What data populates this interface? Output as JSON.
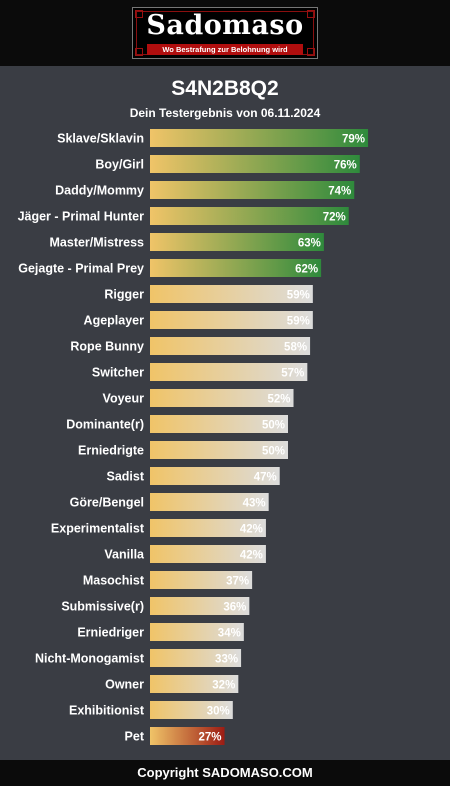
{
  "header": {
    "logo_text": "Sadomaso",
    "logo_tagline": "Wo Bestrafung zur Belohnung wird"
  },
  "test_code": "S4N2B8Q2",
  "test_date_line": "Dein Testergebnis von 06.11.2024",
  "footer_text": "Copyright SADOMASO.COM",
  "colors": {
    "background": "#3a3d44",
    "gradient_start": "#f0c468",
    "high_end": "#2e8a3c",
    "mid_end": "#dcdcdc",
    "low_end": "#9c1c14"
  },
  "chart_data": {
    "type": "bar",
    "orientation": "horizontal",
    "xlim": [
      0,
      100
    ],
    "unit": "%",
    "categories": [
      "Sklave/Sklavin",
      "Boy/Girl",
      "Daddy/Mommy",
      "Jäger - Primal Hunter",
      "Master/Mistress",
      "Gejagte - Primal Prey",
      "Rigger",
      "Ageplayer",
      "Rope Bunny",
      "Switcher",
      "Voyeur",
      "Dominante(r)",
      "Erniedrigte",
      "Sadist",
      "Göre/Bengel",
      "Experimentalist",
      "Vanilla",
      "Masochist",
      "Submissive(r)",
      "Erniedriger",
      "Nicht-Monogamist",
      "Owner",
      "Exhibitionist",
      "Pet"
    ],
    "values": [
      79,
      76,
      74,
      72,
      63,
      62,
      59,
      59,
      58,
      57,
      52,
      50,
      50,
      47,
      43,
      42,
      42,
      37,
      36,
      34,
      33,
      32,
      30,
      27
    ],
    "labels": [
      "79%",
      "76%",
      "74%",
      "72%",
      "63%",
      "62%",
      "59%",
      "59%",
      "58%",
      "57%",
      "52%",
      "50%",
      "50%",
      "47%",
      "43%",
      "42%",
      "42%",
      "37%",
      "36%",
      "34%",
      "33%",
      "32%",
      "30%",
      "27%"
    ],
    "grid": false,
    "legend": "none"
  }
}
